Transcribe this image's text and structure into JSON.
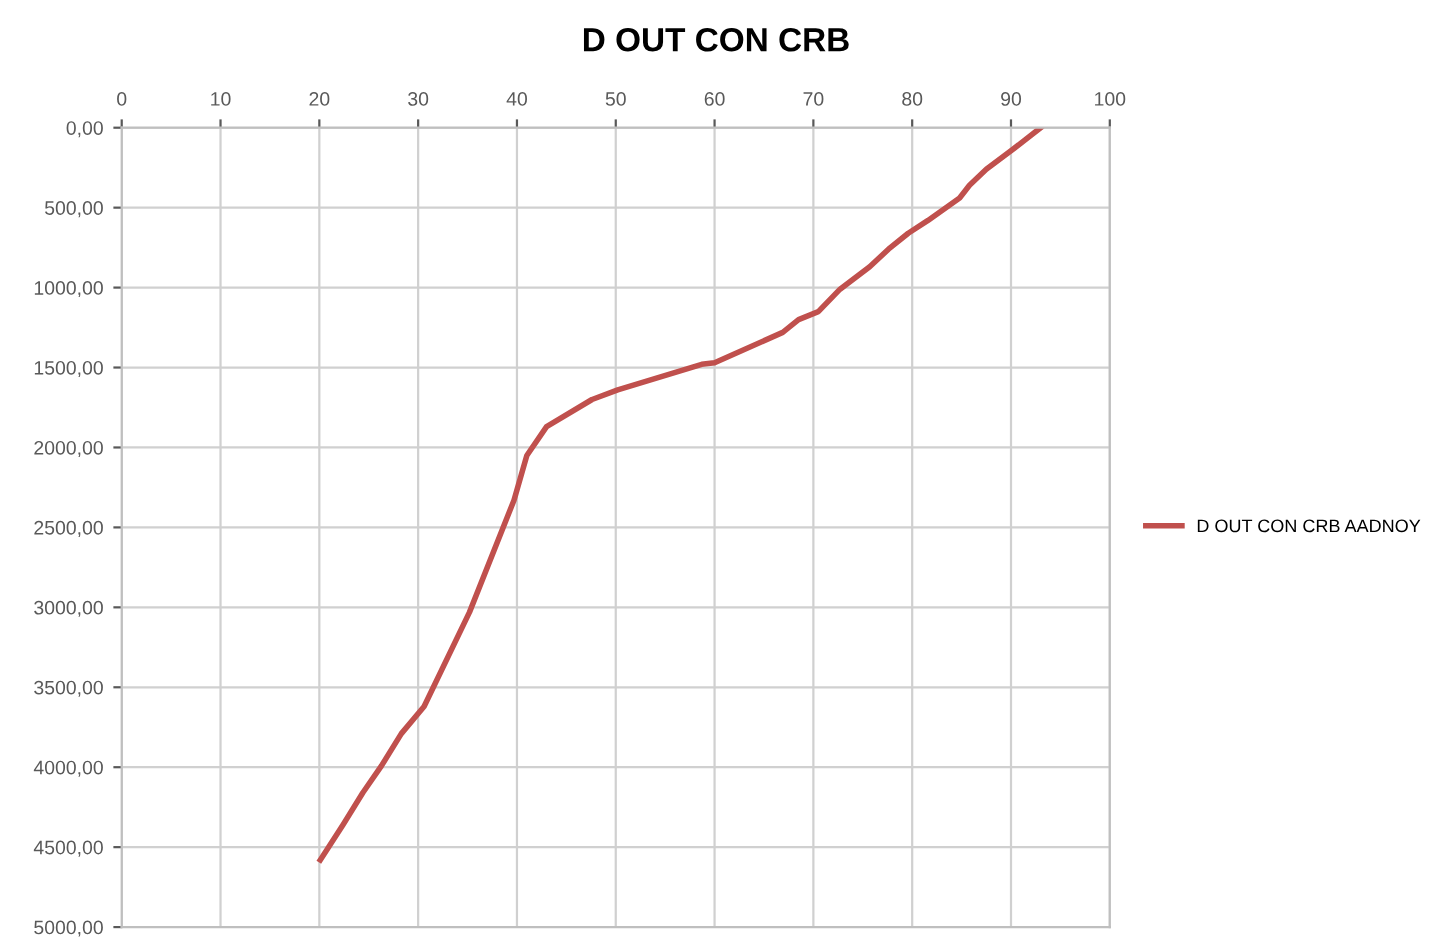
{
  "chart_data": {
    "type": "line",
    "title": "D OUT CON CRB",
    "series": [
      {
        "name": "D OUT CON CRB AADNOY",
        "color": "#c0504d",
        "x": [
          20.1,
          22.4,
          24.4,
          26.3,
          28.3,
          30.6,
          35.2,
          39.7,
          41.0,
          43.0,
          47.6,
          50.2,
          58.7,
          60.0,
          66.9,
          68.5,
          70.5,
          72.7,
          75.7,
          77.6,
          79.6,
          81.6,
          84.8,
          85.8,
          87.5,
          90.1,
          93.0
        ],
        "values": [
          4580,
          4360,
          4160,
          3990,
          3790,
          3620,
          3030,
          2330,
          2050,
          1870,
          1700,
          1640,
          1480,
          1470,
          1280,
          1200,
          1150,
          1010,
          870,
          760,
          660,
          580,
          440,
          360,
          260,
          140,
          0
        ]
      }
    ],
    "xlim": [
      0,
      100
    ],
    "xticks": [
      0,
      10,
      20,
      30,
      40,
      50,
      60,
      70,
      80,
      90,
      100
    ],
    "ylim": [
      5000,
      0
    ],
    "yticks": [
      {
        "value": 0,
        "label": "0,00"
      },
      {
        "value": 500,
        "label": "500,00"
      },
      {
        "value": 1000,
        "label": "1000,00"
      },
      {
        "value": 1500,
        "label": "1500,00"
      },
      {
        "value": 2000,
        "label": "2000,00"
      },
      {
        "value": 2500,
        "label": "2500,00"
      },
      {
        "value": 3000,
        "label": "3000,00"
      },
      {
        "value": 3500,
        "label": "3500,00"
      },
      {
        "value": 4000,
        "label": "4000,00"
      },
      {
        "value": 4500,
        "label": "4500,00"
      },
      {
        "value": 5000,
        "label": "5000,00"
      }
    ],
    "grid": true,
    "legend": "right",
    "marker": "none",
    "line_style": "solid"
  }
}
